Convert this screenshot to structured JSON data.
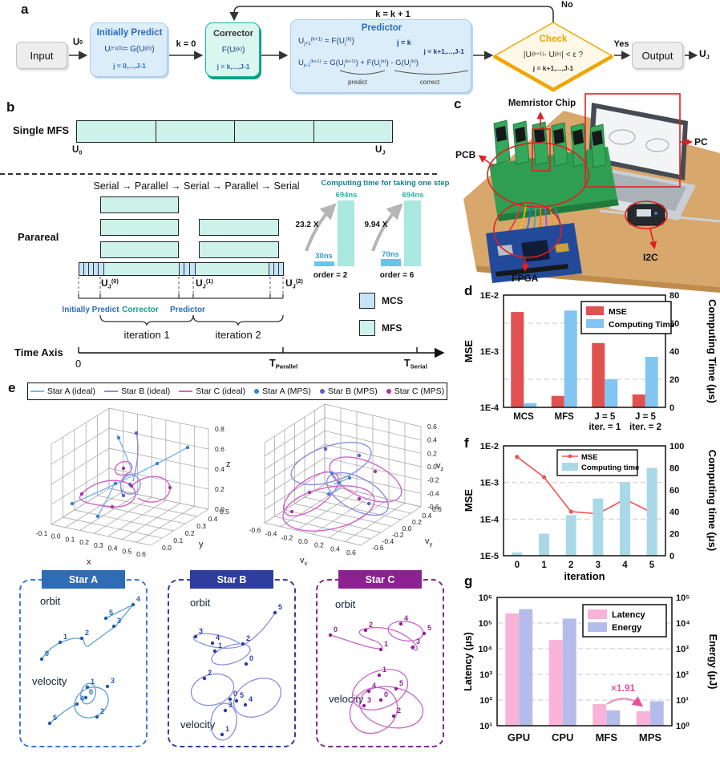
{
  "colors": {
    "mfs": "#ccf2e9",
    "mcs": "#c6e4f8",
    "accent_blue": "#2a6db8",
    "accent_teal": "#12a08e",
    "check_orange": "#f0a500",
    "red_bar": "#e0514f",
    "blue_bar": "#82c5f0",
    "pink_bar": "#f9b3d9",
    "lavender_bar": "#b6bcea",
    "annot_pink": "#ea4f9b"
  },
  "panel_a": {
    "label": "a",
    "input": "Input",
    "u0": "U_[0]",
    "initially_predict": {
      "title": "Initially Predict",
      "eq": "U_[j+1]^[(0)] = G(U_[j]^[(0)])",
      "cond": "j = 0,...,J-1"
    },
    "k0": "k = 0",
    "corrector": {
      "title": "Corrector",
      "eq": "F(U_[j]^[(k)])",
      "cond": "j = k,...,J-1"
    },
    "predictor": {
      "title": "Predictor",
      "eq1": "U_[j+1]^[(k+1)] = F(U_[j]^[(k)])",
      "cond1": "j = k",
      "cond2": "j = k+1,...,J-1",
      "eq2": "U_[j+1]^[(k+1)] = G(U_[j]^[(k+1)]) + F(U_[j]^[(k)]) - G(U_[j]^[(k)])",
      "brace_predict": "predict",
      "brace_correct": "correct"
    },
    "check": {
      "title": "Check",
      "eq": "|U_[j]^[(k+1)] - U_[j]^[(k)]| < ε ?",
      "cond": "j = k+1,...,J-1"
    },
    "no": "No",
    "yes": "Yes",
    "loop": "k = k + 1",
    "output": "Output",
    "uj": "U_[J]"
  },
  "panel_b": {
    "label": "b",
    "single_mfs": "Single MFS",
    "u0": "U_[0]",
    "uJ": "U_[J]",
    "pattern": "Serial → Parallel → Serial → Parallel → Serial",
    "parareal": "Parareal",
    "uj_labels": [
      "U_[J]^[(0)]",
      "U_[J]^[(1)]",
      "U_[J]^[(2)]"
    ],
    "stage": {
      "ip": "Initially Predict",
      "corr": "Corrector",
      "pred": "Predictor"
    },
    "iter1": "iteration 1",
    "iter2": "iteration 2",
    "time_axis": "Time Axis",
    "t0": "0",
    "t_par": "T_[Parallel]",
    "t_ser": "T_[Serial]",
    "legend_mcs": "MCS",
    "legend_mfs": "MFS",
    "inset": {
      "title": "Computing time for taking one step",
      "g1": {
        "slow": "694ns",
        "fast": "30ns",
        "speed": "23.2 X",
        "order": "order = 2"
      },
      "g2": {
        "slow": "694ns",
        "fast": "70ns",
        "speed": "9.94 X",
        "order": "order = 6"
      }
    }
  },
  "panel_c": {
    "label": "c",
    "labels": {
      "memristor": "Memristor Chip",
      "pc": "PC",
      "pcb": "PCB",
      "fpga": "FPGA",
      "i2c": "I2C"
    }
  },
  "panel_e": {
    "label": "e",
    "legend": [
      {
        "label": "Star A (ideal)",
        "color": "#7db6ea",
        "marker": "line"
      },
      {
        "label": "Star B (ideal)",
        "color": "#8a90dd",
        "marker": "line"
      },
      {
        "label": "Star C (ideal)",
        "color": "#cf64c8",
        "marker": "line"
      },
      {
        "label": "Star A (MPS)",
        "color": "#3b7fd4",
        "marker": "dot"
      },
      {
        "label": "Star B (MPS)",
        "color": "#5a62c8",
        "marker": "dot"
      },
      {
        "label": "Star C (MPS)",
        "color": "#a637a0",
        "marker": "dot"
      }
    ],
    "pos_plot": {
      "x_ticks": [
        "-0.1",
        "0.0",
        "0.1",
        "0.2",
        "0.3",
        "0.4",
        "0.5",
        "0.6"
      ],
      "y_ticks": [
        "0.0",
        "0.1",
        "0.2",
        "0.3",
        "0.4",
        "0.5"
      ],
      "z_ticks": [
        "0.0",
        "0.2",
        "0.4",
        "0.6",
        "0.8"
      ],
      "xlabel": "x",
      "ylabel": "y",
      "zlabel": "z"
    },
    "vel_plot": {
      "x_ticks": [
        "-0.6",
        "-0.4",
        "-0.2",
        "0.0",
        "0.2",
        "0.4",
        "0.6"
      ],
      "y_ticks": [
        "-0.6",
        "-0.4",
        "-0.2",
        "0.0",
        "0.2",
        "0.4",
        "0.6"
      ],
      "z_ticks": [
        "-0.6",
        "-0.4",
        "-0.2",
        "0.0",
        "0.2",
        "0.4",
        "0.6"
      ],
      "xlabel": {
        "base": "v",
        "sub": "x"
      },
      "ylabel": {
        "base": "v",
        "sub": "y"
      },
      "zlabel": {
        "base": "v",
        "sub": "z"
      }
    },
    "point_labels": [
      "0",
      "1",
      "2",
      "3",
      "4",
      "5"
    ],
    "stars": [
      {
        "name": "Star A",
        "orbit_label": "orbit",
        "velocity_label": "velocity",
        "color": "#2e6cb5"
      },
      {
        "name": "Star B",
        "orbit_label": "orbit",
        "velocity_label": "velocity",
        "color": "#2f3d9e"
      },
      {
        "name": "Star C",
        "orbit_label": "orbit",
        "velocity_label": "velocity",
        "color": "#8c2191"
      }
    ]
  },
  "chart_data": [
    {
      "panel": "d",
      "type": "bar",
      "categories": [
        "MCS",
        "MFS",
        "J = 5",
        "J = 5"
      ],
      "category_sub": [
        "",
        "",
        "iter. = 1",
        "iter. = 2"
      ],
      "series": [
        {
          "name": "MSE",
          "type": "bar",
          "axis": "left",
          "color": "#e0514f",
          "values": [
            0.005,
            0.00016,
            0.0014,
            0.00017
          ]
        },
        {
          "name": "Computing Time",
          "type": "bar",
          "axis": "right",
          "color": "#82c5f0",
          "values": [
            3,
            69,
            20,
            36
          ]
        }
      ],
      "left_axis": {
        "label": "MSE",
        "scale": "log",
        "range": [
          0.01,
          0.0001
        ],
        "ticks": [
          "1E-2",
          "1E-3",
          "1E-4"
        ]
      },
      "right_axis": {
        "label": "Computing Time (μs)",
        "scale": "linear",
        "range": [
          80,
          0
        ],
        "ticks": [
          "80",
          "60",
          "40",
          "20",
          "0"
        ]
      },
      "legend": [
        "MSE",
        "Computing Time"
      ],
      "legend_position": "upper right",
      "grid": "dashed"
    },
    {
      "panel": "f",
      "type": "line+bar",
      "xlabel": "iteration",
      "categories": [
        "0",
        "1",
        "2",
        "3",
        "4",
        "5"
      ],
      "series": [
        {
          "name": "MSE",
          "type": "line",
          "axis": "left",
          "color": "#f05352",
          "values": [
            0.005,
            0.0014,
            0.00016,
            0.00014,
            0.00035,
            0.00015
          ]
        },
        {
          "name": "Computing time",
          "type": "bar",
          "axis": "right",
          "color": "#a9d8e6",
          "values": [
            3,
            20,
            37,
            52,
            67,
            80
          ]
        }
      ],
      "left_axis": {
        "label": "MSE",
        "scale": "log",
        "range": [
          0.01,
          1e-05
        ],
        "ticks": [
          "1E-2",
          "1E-3",
          "1E-4",
          "1E-5"
        ]
      },
      "right_axis": {
        "label": "Computing time (μs)",
        "scale": "linear",
        "range": [
          100,
          0
        ],
        "ticks": [
          "100",
          "80",
          "60",
          "40",
          "20",
          "0"
        ]
      },
      "legend": [
        "MSE",
        "Computing time"
      ],
      "legend_position": "upper center",
      "grid": "dashed"
    },
    {
      "panel": "g",
      "type": "bar",
      "categories": [
        "GPU",
        "CPU",
        "MFS",
        "MPS"
      ],
      "series": [
        {
          "name": "Latency",
          "type": "bar",
          "axis": "left",
          "color": "#f9b3d9",
          "values": [
            240000,
            22000,
            70,
            37
          ]
        },
        {
          "name": "Energy",
          "type": "bar",
          "axis": "right",
          "color": "#b6bcea",
          "values": [
            35000,
            15000,
            4,
            9
          ]
        }
      ],
      "left_axis": {
        "label": "Latency (μs)",
        "scale": "log",
        "range": [
          1000000,
          10
        ],
        "ticks": [
          "10⁶",
          "10⁵",
          "10⁴",
          "10³",
          "10²",
          "10¹"
        ]
      },
      "right_axis": {
        "label": "Energy (μJ)",
        "scale": "log",
        "range": [
          100000,
          1
        ],
        "ticks": [
          "10⁵",
          "10⁴",
          "10³",
          "10²",
          "10¹",
          "10⁰"
        ]
      },
      "legend": [
        "Latency",
        "Energy"
      ],
      "legend_position": "upper right",
      "annotation": "×1.91",
      "grid": "dashed"
    }
  ]
}
